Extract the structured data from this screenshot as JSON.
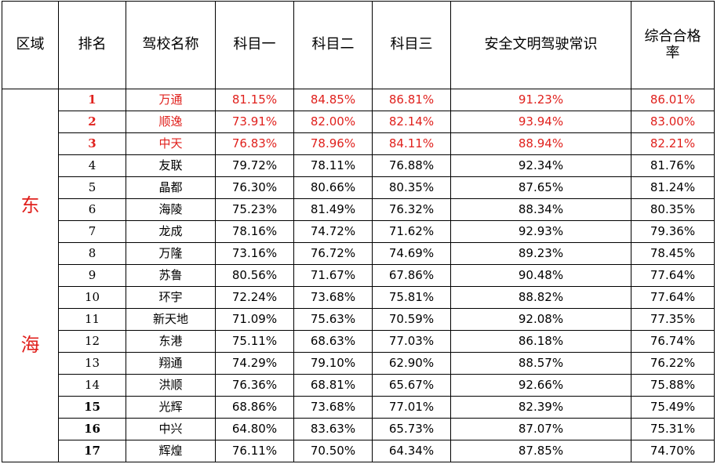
{
  "headers": [
    "区域",
    "排名",
    "驾校名称",
    "科目一",
    "科目二",
    "科目三",
    "安全文明驾驶常识",
    "综合合格率"
  ],
  "region": [
    "东",
    "海"
  ],
  "rows": [
    {
      "rank": "1",
      "name": "万通",
      "k1": "81.15%",
      "k2": "84.85%",
      "k3": "86.81%",
      "safety": "91.23%",
      "total": "86.01%"
    },
    {
      "rank": "2",
      "name": "顺逸",
      "k1": "73.91%",
      "k2": "82.00%",
      "k3": "82.14%",
      "safety": "93.94%",
      "total": "83.00%"
    },
    {
      "rank": "3",
      "name": "中天",
      "k1": "76.83%",
      "k2": "78.96%",
      "k3": "84.11%",
      "safety": "88.94%",
      "total": "82.21%"
    },
    {
      "rank": "4",
      "name": "友联",
      "k1": "79.72%",
      "k2": "78.11%",
      "k3": "76.88%",
      "safety": "92.34%",
      "total": "81.76%"
    },
    {
      "rank": "5",
      "name": "晶都",
      "k1": "76.30%",
      "k2": "80.66%",
      "k3": "80.35%",
      "safety": "87.65%",
      "total": "81.24%"
    },
    {
      "rank": "6",
      "name": "海陵",
      "k1": "75.23%",
      "k2": "81.49%",
      "k3": "76.32%",
      "safety": "88.34%",
      "total": "80.35%"
    },
    {
      "rank": "7",
      "name": "龙成",
      "k1": "78.16%",
      "k2": "74.72%",
      "k3": "71.62%",
      "safety": "92.93%",
      "total": "79.36%"
    },
    {
      "rank": "8",
      "name": "万隆",
      "k1": "73.16%",
      "k2": "76.72%",
      "k3": "74.69%",
      "safety": "89.23%",
      "total": "78.45%"
    },
    {
      "rank": "9",
      "name": "苏鲁",
      "k1": "80.56%",
      "k2": "71.67%",
      "k3": "67.86%",
      "safety": "90.48%",
      "total": "77.64%"
    },
    {
      "rank": "10",
      "name": "环宇",
      "k1": "72.24%",
      "k2": "73.68%",
      "k3": "75.81%",
      "safety": "88.82%",
      "total": "77.64%"
    },
    {
      "rank": "11",
      "name": "新天地",
      "k1": "71.09%",
      "k2": "75.63%",
      "k3": "70.59%",
      "safety": "92.08%",
      "total": "77.35%"
    },
    {
      "rank": "12",
      "name": "东港",
      "k1": "75.11%",
      "k2": "68.63%",
      "k3": "77.03%",
      "safety": "86.18%",
      "total": "76.74%"
    },
    {
      "rank": "13",
      "name": "翔通",
      "k1": "74.29%",
      "k2": "79.10%",
      "k3": "62.90%",
      "safety": "88.57%",
      "total": "76.22%"
    },
    {
      "rank": "14",
      "name": "洪顺",
      "k1": "76.36%",
      "k2": "68.81%",
      "k3": "65.67%",
      "safety": "92.66%",
      "total": "75.88%"
    },
    {
      "rank": "15",
      "name": "光辉",
      "k1": "68.86%",
      "k2": "73.68%",
      "k3": "77.01%",
      "safety": "82.39%",
      "total": "75.49%"
    },
    {
      "rank": "16",
      "name": "中兴",
      "k1": "64.80%",
      "k2": "83.63%",
      "k3": "65.73%",
      "safety": "87.07%",
      "total": "75.31%"
    },
    {
      "rank": "17",
      "name": "辉煌",
      "k1": "76.11%",
      "k2": "70.50%",
      "k3": "64.34%",
      "safety": "87.85%",
      "total": "74.70%"
    }
  ],
  "highlight_color": "#e0211d"
}
